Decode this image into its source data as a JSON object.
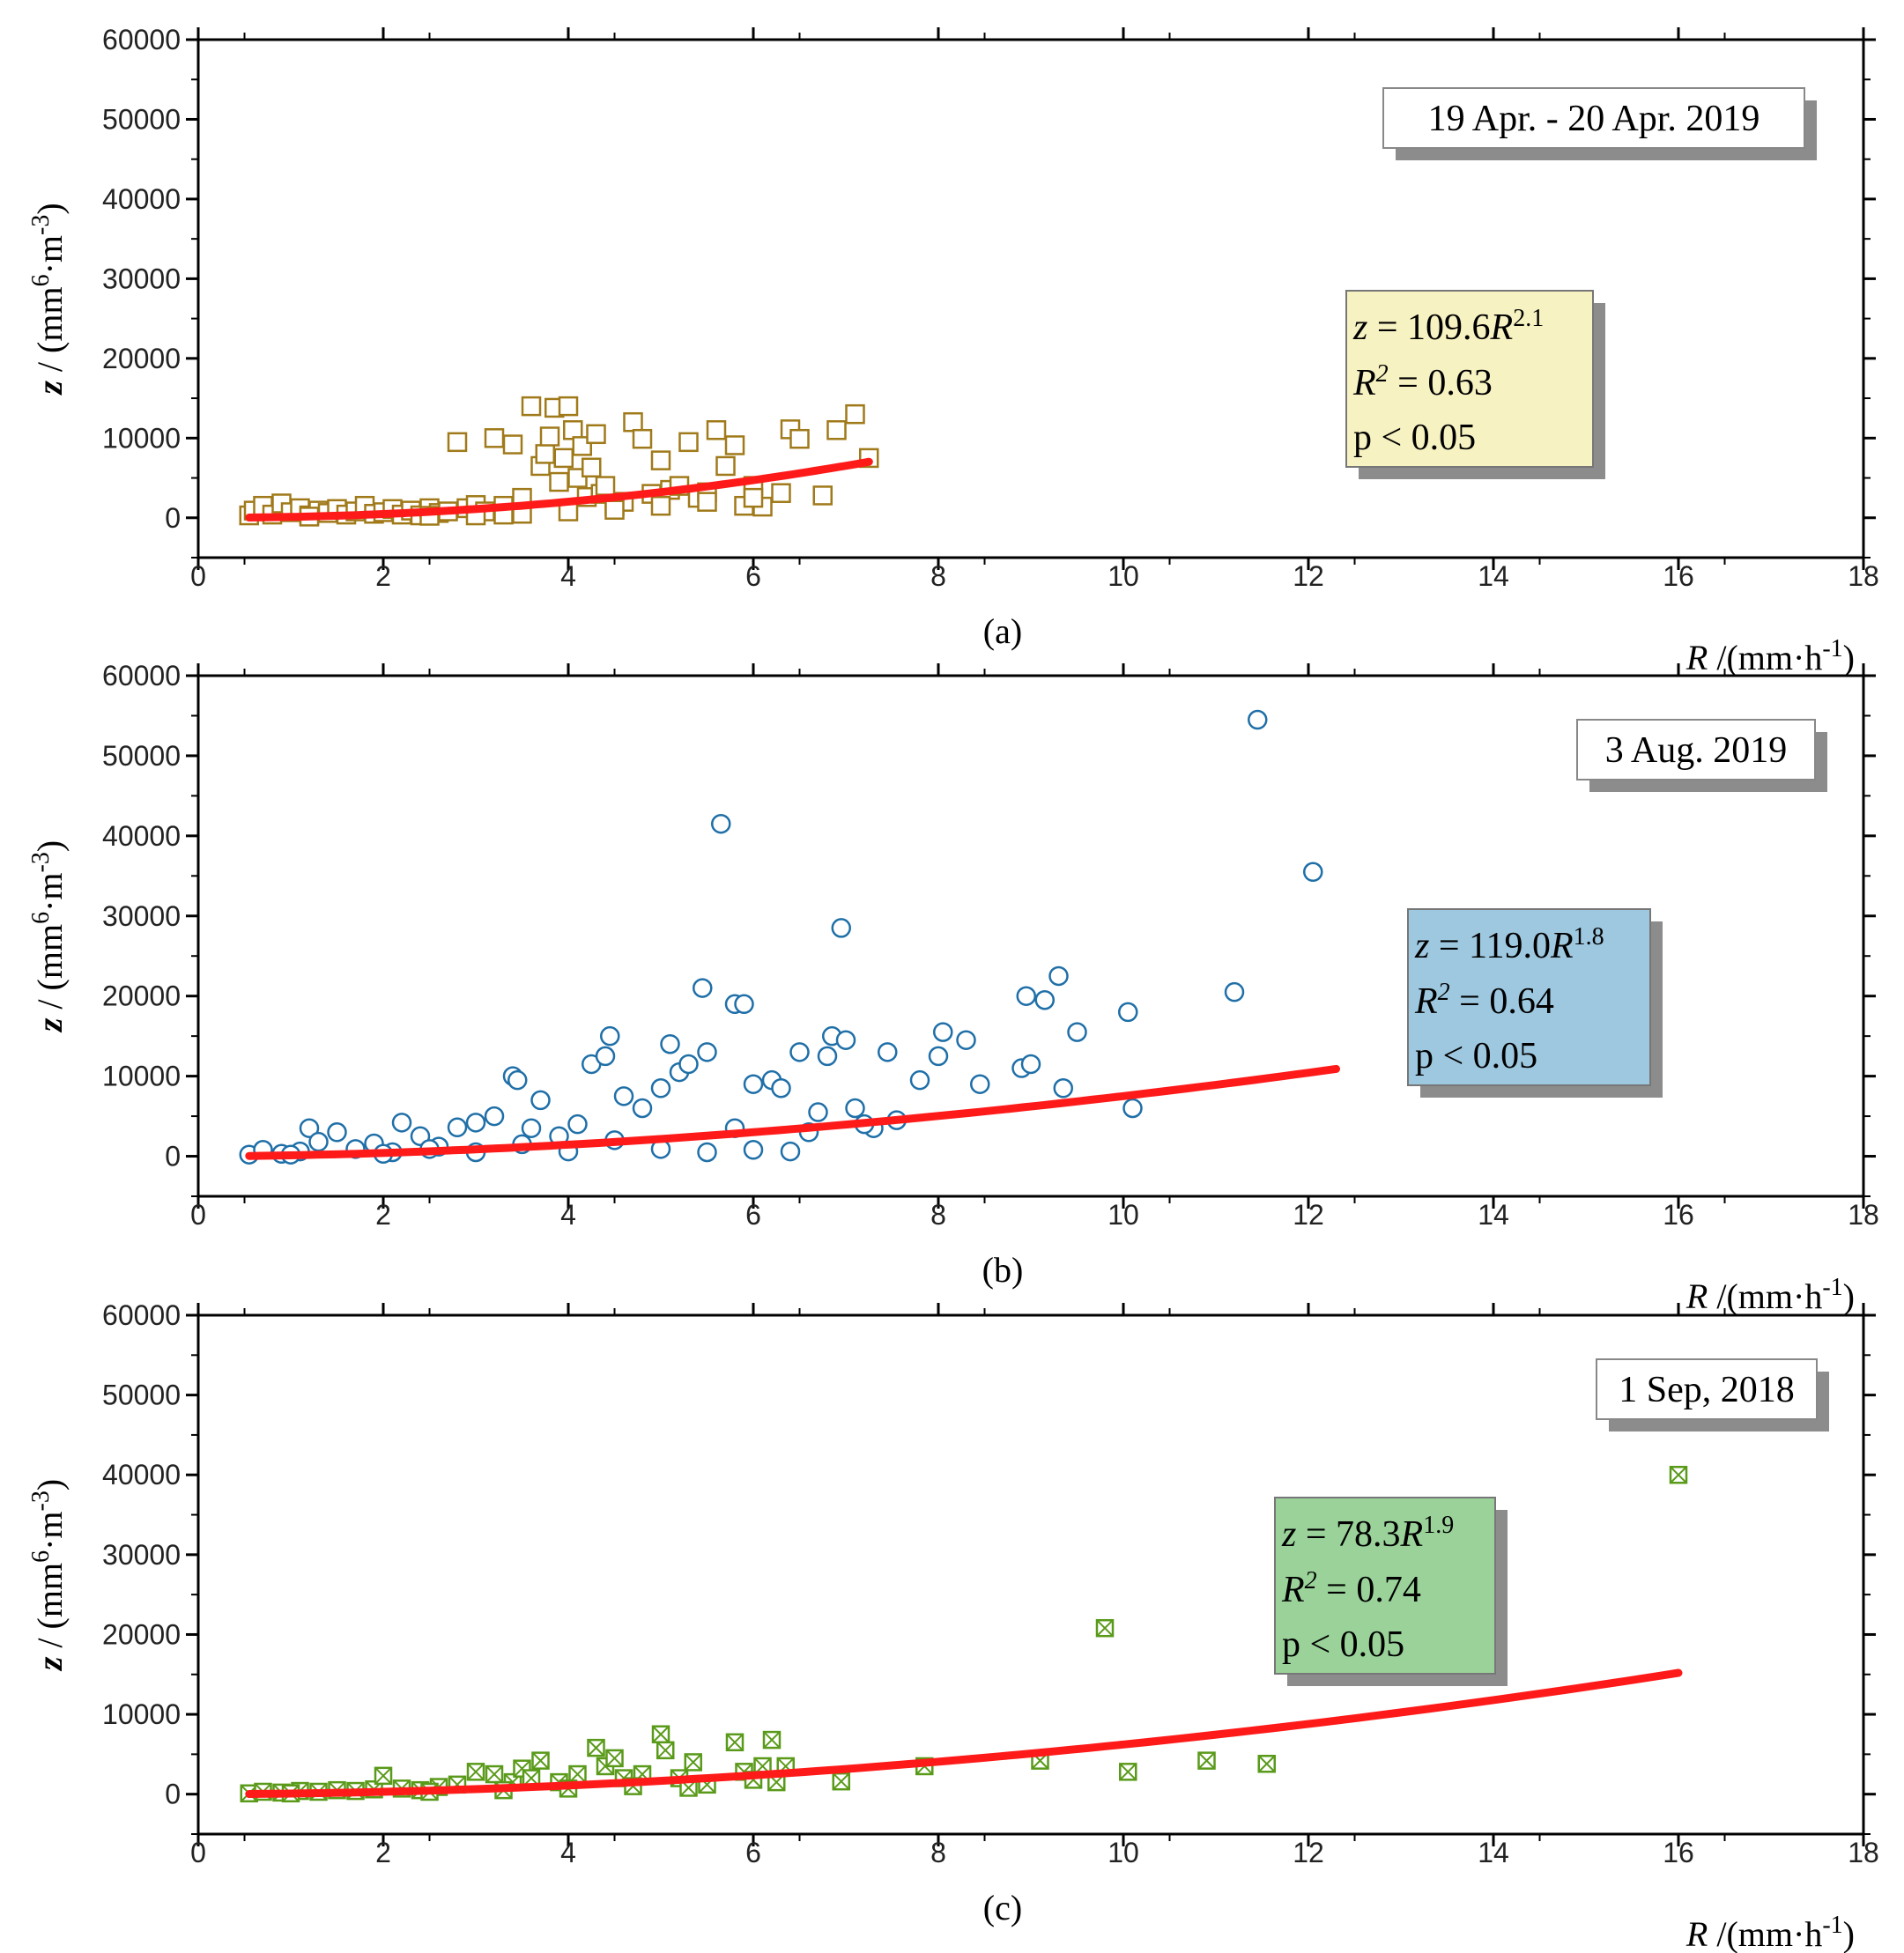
{
  "chart_data": [
    {
      "type": "scatter",
      "panel_label": "(a)",
      "date_label": "19 Apr. - 20 Apr. 2019",
      "xlabel": {
        "italic": "R",
        "text": " /(mm·h",
        "exp": "-1",
        "close": ")"
      },
      "ylabel": {
        "italic": "z",
        "text": " / (mm",
        "exp1": "6",
        "mid": "·m",
        "exp2": "-3",
        "close": ")"
      },
      "xlim": [
        0,
        18
      ],
      "ylim": [
        -5000,
        60000
      ],
      "x_ticks": [
        0,
        2,
        4,
        6,
        8,
        10,
        12,
        14,
        16,
        18
      ],
      "y_ticks": [
        0,
        10000,
        20000,
        30000,
        40000,
        50000,
        60000
      ],
      "fit": {
        "a": 109.6,
        "b": 2.1,
        "x_range": [
          0.55,
          7.25
        ],
        "color": "#ff1a1a"
      },
      "stats": {
        "eq_z": "z",
        "eq_mid": " = 109.6",
        "eq_R": "R",
        "eq_exp": "2.1",
        "r2_R": "R",
        "r2_exp": "2",
        "r2_val": " = 0.63",
        "p_text": "p < 0.05"
      },
      "marker": "square",
      "marker_color": "#a07a1a",
      "box_color": "#f7f2c2",
      "points": [
        [
          0.55,
          300
        ],
        [
          0.6,
          900
        ],
        [
          0.7,
          1500
        ],
        [
          0.8,
          400
        ],
        [
          0.9,
          1800
        ],
        [
          1.0,
          700
        ],
        [
          1.1,
          1200
        ],
        [
          1.2,
          300
        ],
        [
          1.3,
          900
        ],
        [
          1.4,
          600
        ],
        [
          1.5,
          1100
        ],
        [
          1.6,
          400
        ],
        [
          1.7,
          800
        ],
        [
          1.8,
          1500
        ],
        [
          1.9,
          500
        ],
        [
          2.0,
          700
        ],
        [
          2.1,
          1100
        ],
        [
          2.2,
          400
        ],
        [
          2.3,
          900
        ],
        [
          2.4,
          300
        ],
        [
          2.5,
          1200
        ],
        [
          2.6,
          600
        ],
        [
          2.7,
          800
        ],
        [
          2.8,
          9500
        ],
        [
          2.9,
          1200
        ],
        [
          3.0,
          1600
        ],
        [
          3.1,
          800
        ],
        [
          3.2,
          10000
        ],
        [
          3.3,
          1500
        ],
        [
          3.4,
          9200
        ],
        [
          3.5,
          2500
        ],
        [
          3.6,
          14000
        ],
        [
          3.7,
          6500
        ],
        [
          3.75,
          8000
        ],
        [
          3.8,
          10200
        ],
        [
          3.85,
          13800
        ],
        [
          3.9,
          4500
        ],
        [
          3.95,
          7500
        ],
        [
          4.0,
          14000
        ],
        [
          4.05,
          11000
        ],
        [
          4.1,
          5000
        ],
        [
          4.15,
          9000
        ],
        [
          4.2,
          2600
        ],
        [
          4.25,
          6300
        ],
        [
          4.3,
          10500
        ],
        [
          4.35,
          3000
        ],
        [
          4.4,
          4000
        ],
        [
          4.5,
          1500
        ],
        [
          4.6,
          2000
        ],
        [
          4.7,
          12000
        ],
        [
          4.8,
          9900
        ],
        [
          4.9,
          3000
        ],
        [
          5.0,
          7200
        ],
        [
          5.1,
          3500
        ],
        [
          5.2,
          4000
        ],
        [
          5.3,
          9500
        ],
        [
          5.4,
          2500
        ],
        [
          5.5,
          3200
        ],
        [
          5.6,
          11000
        ],
        [
          5.7,
          6500
        ],
        [
          5.8,
          9100
        ],
        [
          5.9,
          1500
        ],
        [
          6.0,
          4000
        ],
        [
          6.1,
          1400
        ],
        [
          6.3,
          3100
        ],
        [
          6.4,
          11100
        ],
        [
          6.5,
          9900
        ],
        [
          6.75,
          2800
        ],
        [
          6.9,
          11000
        ],
        [
          7.1,
          13000
        ],
        [
          7.25,
          7500
        ],
        [
          3.0,
          300
        ],
        [
          3.5,
          500
        ],
        [
          4.0,
          800
        ],
        [
          4.5,
          1000
        ],
        [
          5.0,
          1500
        ],
        [
          5.5,
          2000
        ],
        [
          6.0,
          2500
        ],
        [
          1.2,
          150
        ],
        [
          2.5,
          250
        ],
        [
          3.3,
          400
        ]
      ]
    },
    {
      "type": "scatter",
      "panel_label": "(b)",
      "date_label": "3 Aug. 2019",
      "xlabel": {
        "italic": "R",
        "text": " /(mm·h",
        "exp": "-1",
        "close": ")"
      },
      "ylabel": {
        "italic": "z",
        "text": " / (mm",
        "exp1": "6",
        "mid": "·m",
        "exp2": "-3",
        "close": ")"
      },
      "xlim": [
        0,
        18
      ],
      "ylim": [
        -5000,
        60000
      ],
      "x_ticks": [
        0,
        2,
        4,
        6,
        8,
        10,
        12,
        14,
        16,
        18
      ],
      "y_ticks": [
        0,
        10000,
        20000,
        30000,
        40000,
        50000,
        60000
      ],
      "fit": {
        "a": 119.0,
        "b": 1.8,
        "x_range": [
          0.55,
          12.3
        ],
        "color": "#ff1a1a"
      },
      "stats": {
        "eq_z": "z",
        "eq_mid": " = 119.0",
        "eq_R": "R",
        "eq_exp": "1.8",
        "r2_R": "R",
        "r2_exp": "2",
        "r2_val": " = 0.64",
        "p_text": "p < 0.05"
      },
      "marker": "circle",
      "marker_color": "#1f6fa8",
      "box_color": "#9ec8e0",
      "points": [
        [
          0.55,
          200
        ],
        [
          0.7,
          800
        ],
        [
          0.9,
          300
        ],
        [
          1.1,
          600
        ],
        [
          1.2,
          3500
        ],
        [
          1.3,
          1800
        ],
        [
          1.5,
          3000
        ],
        [
          1.7,
          900
        ],
        [
          1.9,
          1600
        ],
        [
          2.1,
          500
        ],
        [
          2.2,
          4200
        ],
        [
          2.4,
          2500
        ],
        [
          2.6,
          1200
        ],
        [
          2.8,
          3600
        ],
        [
          3.0,
          4200
        ],
        [
          3.2,
          5000
        ],
        [
          3.4,
          10000
        ],
        [
          3.45,
          9500
        ],
        [
          3.6,
          3500
        ],
        [
          3.7,
          7000
        ],
        [
          3.9,
          2500
        ],
        [
          4.1,
          4000
        ],
        [
          4.25,
          11500
        ],
        [
          4.4,
          12500
        ],
        [
          4.45,
          15000
        ],
        [
          4.6,
          7500
        ],
        [
          4.8,
          6000
        ],
        [
          5.0,
          8500
        ],
        [
          5.1,
          14000
        ],
        [
          5.2,
          10500
        ],
        [
          5.3,
          11500
        ],
        [
          5.45,
          21000
        ],
        [
          5.5,
          13000
        ],
        [
          5.65,
          41500
        ],
        [
          5.8,
          19000
        ],
        [
          5.9,
          19000
        ],
        [
          6.0,
          9000
        ],
        [
          6.2,
          9500
        ],
        [
          6.3,
          8500
        ],
        [
          6.5,
          13000
        ],
        [
          6.7,
          5500
        ],
        [
          6.8,
          12500
        ],
        [
          6.85,
          15000
        ],
        [
          6.95,
          28500
        ],
        [
          7.0,
          14500
        ],
        [
          7.1,
          6000
        ],
        [
          7.3,
          3500
        ],
        [
          7.45,
          13000
        ],
        [
          7.55,
          4500
        ],
        [
          7.8,
          9500
        ],
        [
          8.0,
          12500
        ],
        [
          8.05,
          15500
        ],
        [
          8.3,
          14500
        ],
        [
          8.45,
          9000
        ],
        [
          8.9,
          11000
        ],
        [
          8.95,
          20000
        ],
        [
          9.0,
          11500
        ],
        [
          9.15,
          19500
        ],
        [
          9.3,
          22500
        ],
        [
          9.35,
          8500
        ],
        [
          9.5,
          15500
        ],
        [
          10.05,
          18000
        ],
        [
          10.1,
          6000
        ],
        [
          11.2,
          20500
        ],
        [
          11.45,
          54500
        ],
        [
          12.05,
          35500
        ],
        [
          1.0,
          200
        ],
        [
          2.0,
          300
        ],
        [
          3.0,
          500
        ],
        [
          4.0,
          600
        ],
        [
          5.0,
          900
        ],
        [
          5.5,
          500
        ],
        [
          6.0,
          800
        ],
        [
          6.4,
          600
        ],
        [
          4.5,
          2000
        ],
        [
          3.5,
          1500
        ],
        [
          2.5,
          900
        ],
        [
          5.8,
          3500
        ],
        [
          6.6,
          3000
        ],
        [
          7.2,
          4000
        ]
      ]
    },
    {
      "type": "scatter",
      "panel_label": "(c)",
      "date_label": "1 Sep, 2018",
      "xlabel": {
        "italic": "R",
        "text": " /(mm·h",
        "exp": "-1",
        "close": ")"
      },
      "ylabel": {
        "italic": "z",
        "text": " / (mm",
        "exp1": "6",
        "mid": "·m",
        "exp2": "-3",
        "close": ")"
      },
      "xlim": [
        0,
        18
      ],
      "ylim": [
        -5000,
        60000
      ],
      "x_ticks": [
        0,
        2,
        4,
        6,
        8,
        10,
        12,
        14,
        16,
        18
      ],
      "y_ticks": [
        0,
        10000,
        20000,
        30000,
        40000,
        50000,
        60000
      ],
      "fit": {
        "a": 78.3,
        "b": 1.9,
        "x_range": [
          0.55,
          16.0
        ],
        "color": "#ff1a1a"
      },
      "stats": {
        "eq_z": "z",
        "eq_mid": " = 78.3",
        "eq_R": "R",
        "eq_exp": "1.9",
        "r2_R": "R",
        "r2_exp": "2",
        "r2_val": " = 0.74",
        "p_text": "p < 0.05"
      },
      "marker": "xsquare",
      "marker_color": "#5a9a1a",
      "box_color": "#9ad29a",
      "points": [
        [
          0.55,
          100
        ],
        [
          0.7,
          300
        ],
        [
          0.9,
          200
        ],
        [
          1.1,
          400
        ],
        [
          1.3,
          300
        ],
        [
          1.5,
          500
        ],
        [
          1.7,
          400
        ],
        [
          1.9,
          600
        ],
        [
          2.0,
          2300
        ],
        [
          2.2,
          700
        ],
        [
          2.4,
          500
        ],
        [
          2.6,
          900
        ],
        [
          2.8,
          1200
        ],
        [
          3.0,
          2800
        ],
        [
          3.2,
          2500
        ],
        [
          3.4,
          1500
        ],
        [
          3.5,
          3200
        ],
        [
          3.6,
          2000
        ],
        [
          3.7,
          4200
        ],
        [
          3.9,
          1500
        ],
        [
          4.1,
          2500
        ],
        [
          4.3,
          5800
        ],
        [
          4.4,
          3500
        ],
        [
          4.5,
          4500
        ],
        [
          4.6,
          2000
        ],
        [
          4.8,
          2500
        ],
        [
          5.0,
          7500
        ],
        [
          5.05,
          5500
        ],
        [
          5.2,
          2000
        ],
        [
          5.35,
          4000
        ],
        [
          5.5,
          1200
        ],
        [
          5.8,
          6500
        ],
        [
          5.9,
          2800
        ],
        [
          6.1,
          3500
        ],
        [
          6.2,
          6800
        ],
        [
          6.25,
          1500
        ],
        [
          6.35,
          3500
        ],
        [
          6.95,
          1600
        ],
        [
          7.85,
          3500
        ],
        [
          9.1,
          4200
        ],
        [
          9.8,
          20800
        ],
        [
          10.05,
          2800
        ],
        [
          10.9,
          4200
        ],
        [
          11.55,
          3800
        ],
        [
          16.0,
          40000
        ],
        [
          1.0,
          100
        ],
        [
          2.5,
          300
        ],
        [
          3.3,
          500
        ],
        [
          4.0,
          700
        ],
        [
          4.7,
          1000
        ],
        [
          5.3,
          800
        ],
        [
          6.0,
          1800
        ]
      ]
    }
  ]
}
